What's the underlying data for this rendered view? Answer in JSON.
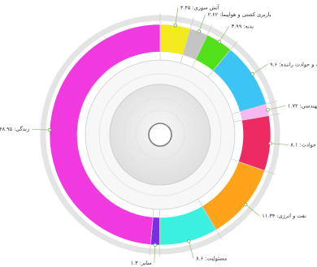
{
  "chart_data": {
    "type": "pie",
    "style": "donut-radial",
    "title": "",
    "legend": "none",
    "slices": [
      {
        "label": "آتش سوزی",
        "value_text": "۴.۴۵",
        "value": 4.45,
        "color": "#f2ea1c"
      },
      {
        "label": "باربری کشتی و هواپیما",
        "value_text": "۲.۶۲",
        "value": 2.62,
        "color": "#c4c4c4"
      },
      {
        "label": "بدنه",
        "value_text": "۳.۹۹",
        "value": 3.99,
        "color": "#52e01a"
      },
      {
        "label": "شخص ثالث و حوادث راننده",
        "value_text": "۹.۶",
        "value": 9.6,
        "color": "#3cc4f4"
      },
      {
        "label": "مهندسی",
        "value_text": "۱.۷۲",
        "value": 1.72,
        "color": "#f5b8f0"
      },
      {
        "label": "درمان و حوادث",
        "value_text": "۸.۱",
        "value": 8.1,
        "color": "#ee2a62"
      },
      {
        "label": "نفت و انرژی",
        "value_text": "۱۱.۳۴",
        "value": 11.34,
        "color": "#ffa31a"
      },
      {
        "label": "مسئولیت",
        "value_text": "۸.۶",
        "value": 8.6,
        "color": "#3cf0e0"
      },
      {
        "label": "سایر",
        "value_text": "۱.۳",
        "value": 1.3,
        "color": "#7a2ee8"
      },
      {
        "label": "زندگی",
        "value_text": "۴۸.۹۵",
        "value": 48.95,
        "color": "#f03ae0"
      }
    ]
  }
}
